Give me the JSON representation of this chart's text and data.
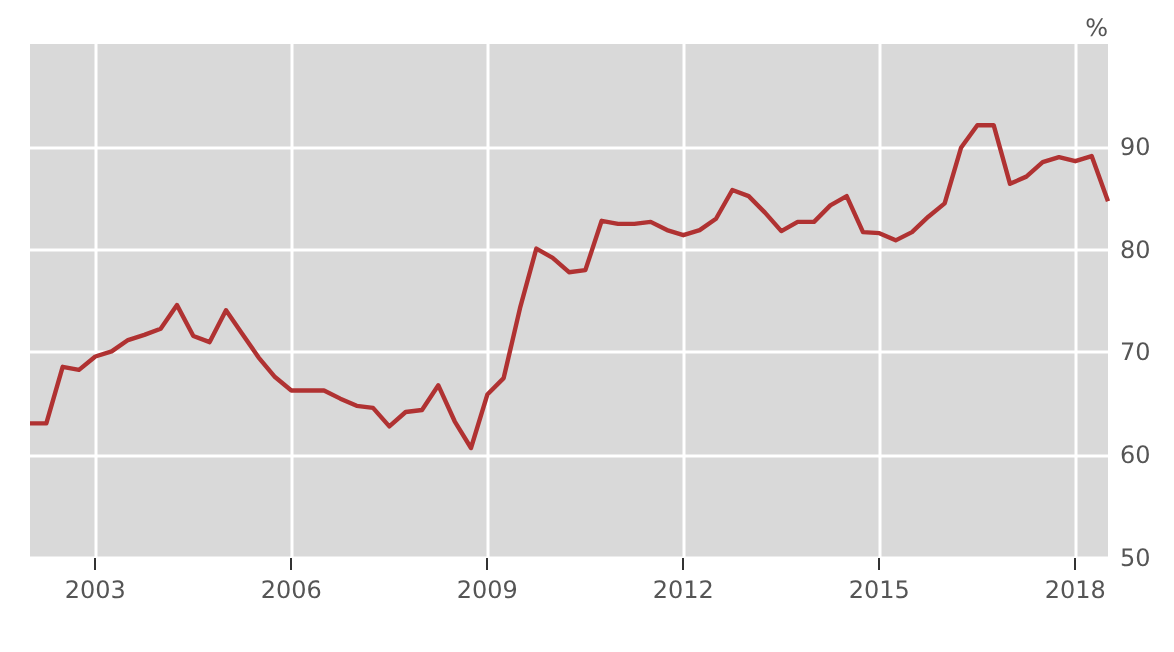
{
  "chart_data": {
    "type": "line",
    "ylabel": "%",
    "x": [
      2002,
      2002.25,
      2002.5,
      2002.75,
      2003,
      2003.25,
      2003.5,
      2003.75,
      2004,
      2004.25,
      2004.5,
      2004.75,
      2005,
      2005.25,
      2005.5,
      2005.75,
      2006,
      2006.25,
      2006.5,
      2006.75,
      2007,
      2007.25,
      2007.5,
      2007.75,
      2008,
      2008.25,
      2008.5,
      2008.75,
      2009,
      2009.25,
      2009.5,
      2009.75,
      2010,
      2010.25,
      2010.5,
      2010.75,
      2011,
      2011.25,
      2011.5,
      2011.75,
      2012,
      2012.25,
      2012.5,
      2012.75,
      2013,
      2013.25,
      2013.5,
      2013.75,
      2014,
      2014.25,
      2014.5,
      2014.75,
      2015,
      2015.25,
      2015.5,
      2015.75,
      2016,
      2016.25,
      2016.5,
      2016.75,
      2017,
      2017.25,
      2017.5,
      2017.75,
      2018,
      2018.25,
      2018.5
    ],
    "series": [
      {
        "color": "#b03232",
        "values": [
          63.1,
          63.1,
          68.6,
          68.3,
          69.6,
          70.1,
          71.2,
          71.7,
          72.3,
          74.6,
          71.6,
          71.0,
          74.1,
          71.8,
          69.5,
          67.6,
          66.3,
          66.3,
          66.3,
          65.5,
          64.8,
          64.6,
          62.8,
          64.2,
          64.4,
          66.8,
          63.3,
          60.7,
          65.9,
          67.5,
          74.3,
          80.1,
          79.2,
          77.8,
          78.0,
          82.8,
          82.5,
          82.5,
          82.7,
          81.9,
          81.4,
          81.9,
          83.0,
          85.8,
          85.2,
          83.6,
          81.8,
          82.7,
          82.7,
          84.3,
          85.2,
          81.7,
          81.6,
          80.9,
          81.7,
          83.2,
          84.5,
          89.9,
          92.1,
          92.1,
          86.4,
          87.1,
          88.5,
          89.0,
          88.6,
          89.1,
          84.7
        ]
      }
    ],
    "xlim": [
      2002,
      2018.5
    ],
    "xticks": [
      2003,
      2006,
      2009,
      2012,
      2015,
      2018
    ],
    "ylim": [
      50,
      100
    ],
    "yticks": [
      50,
      60,
      70,
      80,
      90
    ],
    "grid": true,
    "marker": "none",
    "line_style": "solid"
  }
}
